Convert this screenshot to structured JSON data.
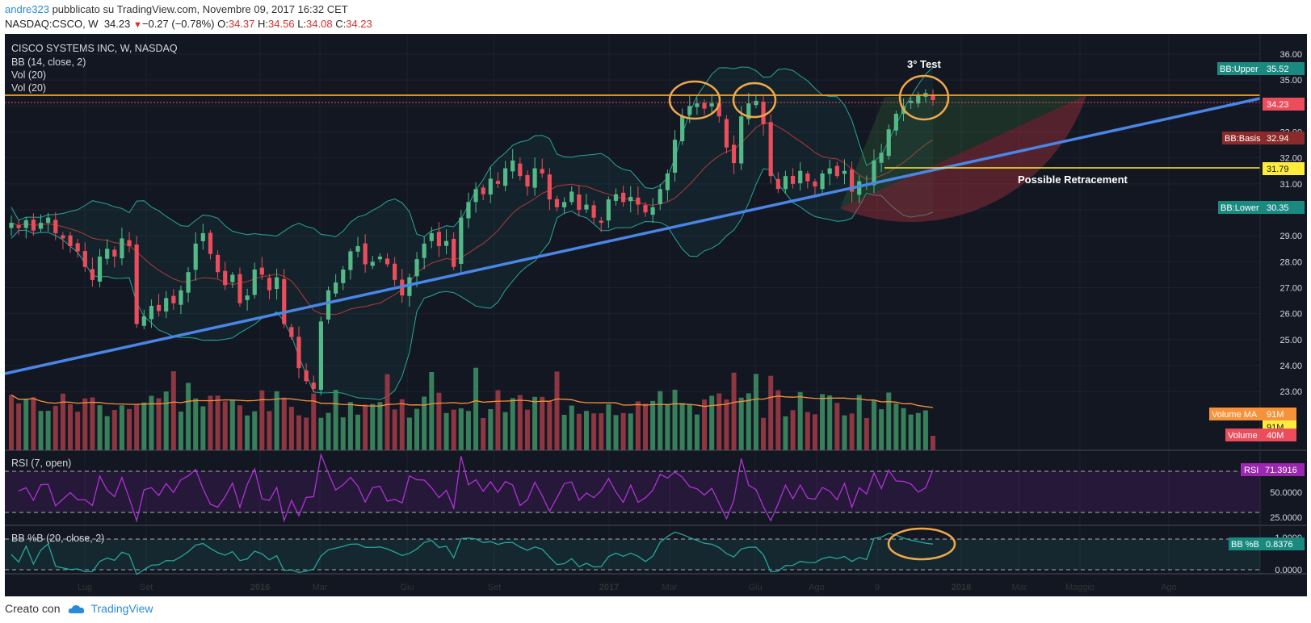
{
  "header": {
    "user": "andre323",
    "published": "pubblicato su TradingView.com, Novembre 09, 2017 16:32 CET",
    "symbol": "NASDAQ:CSCO, W",
    "last": "34.23",
    "change_arrow": "▼",
    "change": "−0.27 (−0.78%)",
    "o_label": "O:",
    "o": "34.37",
    "h_label": "H:",
    "h": "34.56",
    "l_label": "L:",
    "l": "34.08",
    "c_label": "C:",
    "c": "34.23"
  },
  "indicators": {
    "title": "CISCO SYSTEMS INC, W, NASDAQ",
    "bb": "BB (14, close, 2)",
    "vol1": "Vol (20)",
    "vol2": "Vol (20)",
    "rsi": "RSI (7, open)",
    "bbpb": "BB %B (20, close, 2)"
  },
  "annotations": {
    "third_test": "3° Test",
    "retracement": "Possible Retracement"
  },
  "labels": {
    "bb_upper": "BB:Upper",
    "bb_upper_val": "35.52",
    "last_price": "34.23",
    "bb_basis": "BB:Basis",
    "bb_basis_val": "32.94",
    "retrace": "31.79",
    "bb_lower": "BB:Lower",
    "bb_lower_val": "30.35",
    "vol_ma": "Volume MA",
    "vol_ma_val": "91M",
    "vol_ma_val2": "91M",
    "volume": "Volume",
    "volume_val": "40M",
    "rsi": "RSI",
    "rsi_val": "71.3916",
    "bbpb": "BB %B",
    "bbpb_val": "0.8376"
  },
  "footer": {
    "created": "Creato con",
    "brand": "TradingView"
  },
  "colors": {
    "bg": "#131722",
    "up": "#53b987",
    "down": "#eb4d5c",
    "trend": "#4a86e8",
    "resistance": "#ff9f1c",
    "retrace": "#ffeb3b",
    "bb": "#26a69a",
    "rsi": "#b032d6",
    "circle": "#f0a848"
  },
  "chart_data": {
    "type": "candlestick",
    "title": "CISCO SYSTEMS INC, W, NASDAQ",
    "interval": "W",
    "x_axis": {
      "ticks": [
        "Lug",
        "Set",
        "2016",
        "Mar",
        "Giu",
        "Set",
        "2017",
        "Mar",
        "Giu",
        "Ago",
        "9",
        "2018",
        "Mar",
        "Maggio",
        "Ago"
      ]
    },
    "y_axis": {
      "ticks": [
        36.0,
        35.0,
        34.0,
        33.0,
        32.0,
        31.0,
        30.0,
        29.0,
        28.0,
        27.0,
        26.0,
        25.0,
        24.0,
        23.0
      ],
      "range": [
        22.0,
        36.5
      ]
    },
    "close_series": [
      29.5,
      29.3,
      29.6,
      29.2,
      29.5,
      29.7,
      29.1,
      28.9,
      28.6,
      28.4,
      27.8,
      27.3,
      28.2,
      28.5,
      28.2,
      28.9,
      28.6,
      25.6,
      25.9,
      26.3,
      26.1,
      26.6,
      26.4,
      26.9,
      27.6,
      28.7,
      29.1,
      28.3,
      27.6,
      27.1,
      27.5,
      26.4,
      26.7,
      27.7,
      27.5,
      26.9,
      27.4,
      25.6,
      25.1,
      23.9,
      23.4,
      23.1,
      25.7,
      26.9,
      27.2,
      27.7,
      28.4,
      28.6,
      27.9,
      28.0,
      28.2,
      27.9,
      27.3,
      26.7,
      27.4,
      28.1,
      28.7,
      29.1,
      28.6,
      28.8,
      27.8,
      29.7,
      30.3,
      30.8,
      30.6,
      31.2,
      31.0,
      31.6,
      31.9,
      31.3,
      30.9,
      31.6,
      31.4,
      30.4,
      30.1,
      30.3,
      30.7,
      30.0,
      30.2,
      29.7,
      29.5,
      30.4,
      30.6,
      30.3,
      30.5,
      30.2,
      29.9,
      30.1,
      30.8,
      31.4,
      32.7,
      33.6,
      34.0,
      34.1,
      33.9,
      34.1,
      33.6,
      32.4,
      31.8,
      33.6,
      34.1,
      34.2,
      33.3,
      31.3,
      30.8,
      31.3,
      31.0,
      31.5,
      31.1,
      30.9,
      31.4,
      31.6,
      31.3,
      31.5,
      30.7,
      31.1,
      31.0,
      31.9,
      32.2,
      33.1,
      33.7,
      34.0,
      34.2,
      34.4,
      34.5,
      34.23
    ],
    "levels": {
      "resistance": 34.4,
      "last_price": 34.23,
      "bb_upper": 35.52,
      "bb_basis": 32.94,
      "retracement": 31.79,
      "bb_lower": 30.35
    },
    "trendline": [
      {
        "x": "Lug 2015",
        "y": 24.1
      },
      {
        "x": "2018",
        "y": 34.3
      }
    ],
    "volume_ma": "91M",
    "last_volume": "40M",
    "rsi": {
      "params": "RSI (7, open)",
      "value": 71.3916,
      "ticks": [
        50.0,
        25.0
      ]
    },
    "bb_percent_b": {
      "params": "BB %B (20, close, 2)",
      "value": 0.8376,
      "ticks": [
        1.0,
        0.0
      ]
    }
  }
}
